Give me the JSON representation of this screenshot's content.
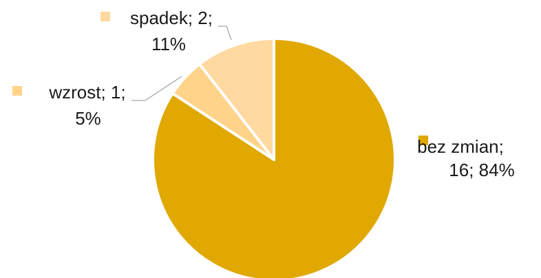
{
  "chart_data": {
    "type": "pie",
    "start_angle_deg": 0,
    "direction": "clockwise",
    "series": [
      {
        "values": [
          16,
          1,
          2
        ],
        "categories": [
          "bez zmian",
          "wzrost",
          "spadek"
        ],
        "colors": [
          "#E0A800",
          "#FFD48A",
          "#FFD9A0"
        ]
      }
    ],
    "labels": [
      {
        "category": "bez zmian",
        "value": 16,
        "percent": "84%",
        "lines": [
          "bez zmian;",
          "16; 84%"
        ]
      },
      {
        "category": "wzrost",
        "value": 1,
        "percent": "5%",
        "lines": [
          "wzrost; 1;",
          "5%"
        ]
      },
      {
        "category": "spadek",
        "value": 2,
        "percent": "11%",
        "lines": [
          "spadek; 2;",
          "11%"
        ]
      }
    ],
    "legend": false,
    "title": ""
  }
}
